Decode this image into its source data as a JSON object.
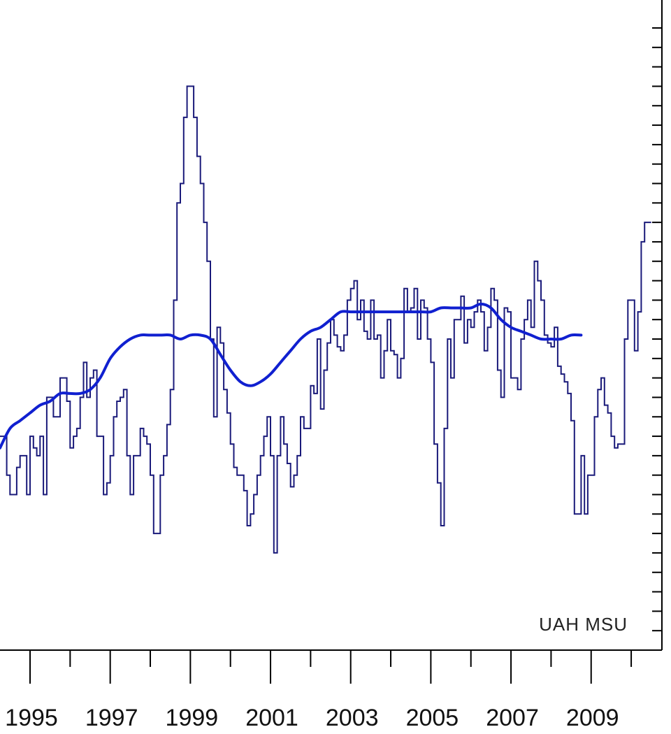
{
  "chart_data": {
    "type": "line",
    "annotation": "UAH MSU",
    "title": "",
    "xlabel": "",
    "ylabel": "",
    "xlim": [
      1994.25,
      2010.33
    ],
    "ylim": [
      -0.65,
      0.95
    ],
    "x_tick_labels": [
      "1995",
      "1997",
      "1999",
      "2001",
      "2003",
      "2005",
      "2007",
      "2009"
    ],
    "x_tick_values": [
      1995,
      1997,
      1999,
      2001,
      2003,
      2005,
      2007,
      2009
    ],
    "x_minor_ticks": [
      1995,
      1996,
      1997,
      1998,
      1999,
      2000,
      2001,
      2002,
      2003,
      2004,
      2005,
      2006,
      2007,
      2008,
      2009,
      2010
    ],
    "y_axis_side": "right",
    "y_tick_values": [
      -0.65,
      -0.6,
      -0.55,
      -0.5,
      -0.45,
      -0.4,
      -0.35,
      -0.3,
      -0.25,
      -0.2,
      -0.15,
      -0.1,
      -0.05,
      0.0,
      0.05,
      0.1,
      0.15,
      0.2,
      0.25,
      0.3,
      0.35,
      0.4,
      0.45,
      0.5,
      0.55,
      0.6,
      0.65,
      0.7,
      0.75,
      0.8,
      0.85,
      0.9,
      0.95
    ],
    "grid": false,
    "colors": {
      "monthly": "#1a1a7a",
      "running_mean": "#1020d0"
    },
    "series": [
      {
        "style": "step",
        "x_start": 1994.25,
        "x_step": 0.08333,
        "values": [
          -0.1,
          -0.1,
          -0.2,
          -0.25,
          -0.25,
          -0.18,
          -0.15,
          -0.15,
          -0.25,
          -0.1,
          -0.13,
          -0.15,
          -0.1,
          -0.25,
          0.0,
          0.0,
          -0.05,
          -0.05,
          0.05,
          0.05,
          -0.01,
          -0.13,
          -0.1,
          -0.08,
          0.0,
          0.09,
          0.0,
          0.05,
          0.07,
          -0.1,
          -0.1,
          -0.25,
          -0.22,
          -0.15,
          -0.05,
          -0.01,
          0.0,
          0.02,
          -0.15,
          -0.25,
          -0.15,
          -0.15,
          -0.08,
          -0.1,
          -0.12,
          -0.2,
          -0.35,
          -0.35,
          -0.2,
          -0.15,
          -0.07,
          0.02,
          0.25,
          0.5,
          0.55,
          0.72,
          0.8,
          0.8,
          0.72,
          0.62,
          0.55,
          0.45,
          0.35,
          0.15,
          -0.05,
          0.18,
          0.14,
          0.02,
          -0.04,
          -0.12,
          -0.18,
          -0.2,
          -0.2,
          -0.24,
          -0.33,
          -0.3,
          -0.25,
          -0.2,
          -0.15,
          -0.1,
          -0.05,
          -0.15,
          -0.4,
          -0.15,
          -0.05,
          -0.12,
          -0.17,
          -0.23,
          -0.2,
          -0.15,
          -0.05,
          -0.08,
          -0.08,
          0.03,
          0.01,
          0.15,
          -0.03,
          0.07,
          0.14,
          0.2,
          0.16,
          0.13,
          0.12,
          0.16,
          0.25,
          0.28,
          0.3,
          0.2,
          0.25,
          0.17,
          0.15,
          0.25,
          0.15,
          0.16,
          0.05,
          0.12,
          0.2,
          0.12,
          0.11,
          0.05,
          0.1,
          0.28,
          0.22,
          0.23,
          0.28,
          0.15,
          0.25,
          0.23,
          0.15,
          0.09,
          -0.12,
          -0.22,
          -0.33,
          -0.08,
          0.15,
          0.05,
          0.2,
          0.2,
          0.26,
          0.14,
          0.2,
          0.18,
          0.22,
          0.25,
          0.22,
          0.12,
          0.18,
          0.28,
          0.25,
          0.07,
          0.0,
          0.23,
          0.22,
          0.05,
          0.05,
          0.02,
          0.15,
          0.2,
          0.25,
          0.18,
          0.35,
          0.3,
          0.25,
          0.16,
          0.14,
          0.13,
          0.18,
          0.08,
          0.06,
          0.04,
          0.01,
          -0.06,
          -0.3,
          -0.3,
          -0.15,
          -0.3,
          -0.2,
          -0.2,
          -0.05,
          0.02,
          0.05,
          -0.02,
          -0.04,
          -0.1,
          -0.13,
          -0.12,
          -0.12,
          0.15,
          0.25,
          0.25,
          0.12,
          0.22,
          0.4,
          0.45,
          0.45
        ]
      },
      {
        "style": "smooth",
        "points": [
          [
            1994.25,
            -0.13
          ],
          [
            1994.5,
            -0.08
          ],
          [
            1994.75,
            -0.06
          ],
          [
            1995.0,
            -0.04
          ],
          [
            1995.25,
            -0.02
          ],
          [
            1995.5,
            -0.01
          ],
          [
            1995.75,
            0.01
          ],
          [
            1996.0,
            0.01
          ],
          [
            1996.25,
            0.01
          ],
          [
            1996.5,
            0.02
          ],
          [
            1996.75,
            0.05
          ],
          [
            1997.0,
            0.1
          ],
          [
            1997.25,
            0.13
          ],
          [
            1997.5,
            0.15
          ],
          [
            1997.75,
            0.16
          ],
          [
            1998.0,
            0.16
          ],
          [
            1998.25,
            0.16
          ],
          [
            1998.5,
            0.16
          ],
          [
            1998.75,
            0.15
          ],
          [
            1999.0,
            0.16
          ],
          [
            1999.25,
            0.16
          ],
          [
            1999.5,
            0.15
          ],
          [
            1999.75,
            0.11
          ],
          [
            2000.0,
            0.07
          ],
          [
            2000.25,
            0.04
          ],
          [
            2000.5,
            0.03
          ],
          [
            2000.75,
            0.04
          ],
          [
            2001.0,
            0.06
          ],
          [
            2001.25,
            0.09
          ],
          [
            2001.5,
            0.12
          ],
          [
            2001.75,
            0.15
          ],
          [
            2002.0,
            0.17
          ],
          [
            2002.25,
            0.18
          ],
          [
            2002.5,
            0.2
          ],
          [
            2002.75,
            0.22
          ],
          [
            2003.0,
            0.22
          ],
          [
            2003.25,
            0.22
          ],
          [
            2003.5,
            0.22
          ],
          [
            2003.75,
            0.22
          ],
          [
            2004.0,
            0.22
          ],
          [
            2004.25,
            0.22
          ],
          [
            2004.5,
            0.22
          ],
          [
            2004.75,
            0.22
          ],
          [
            2005.0,
            0.22
          ],
          [
            2005.25,
            0.23
          ],
          [
            2005.5,
            0.23
          ],
          [
            2005.75,
            0.23
          ],
          [
            2006.0,
            0.23
          ],
          [
            2006.25,
            0.24
          ],
          [
            2006.5,
            0.23
          ],
          [
            2006.75,
            0.2
          ],
          [
            2007.0,
            0.18
          ],
          [
            2007.25,
            0.17
          ],
          [
            2007.5,
            0.16
          ],
          [
            2007.75,
            0.15
          ],
          [
            2008.0,
            0.15
          ],
          [
            2008.25,
            0.15
          ],
          [
            2008.5,
            0.16
          ],
          [
            2008.75,
            0.16
          ]
        ]
      }
    ]
  }
}
